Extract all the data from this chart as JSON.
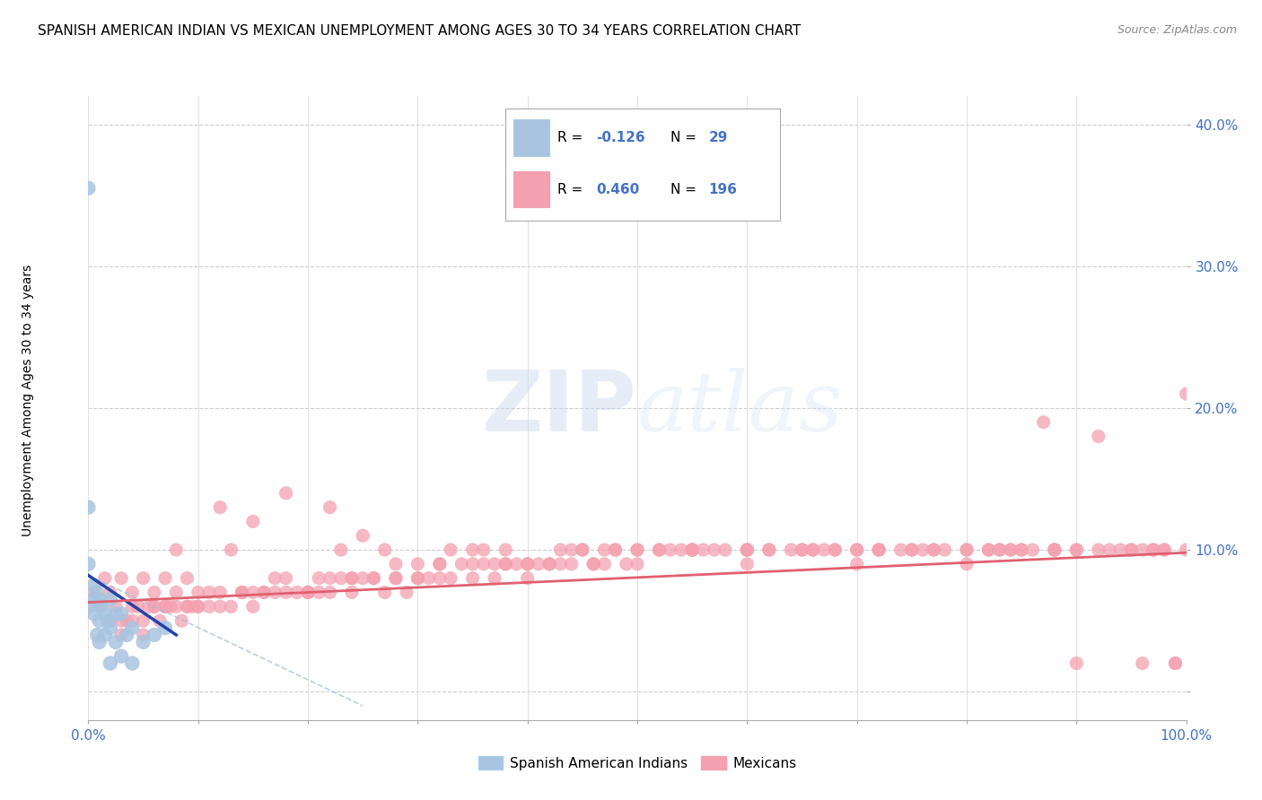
{
  "title": "SPANISH AMERICAN INDIAN VS MEXICAN UNEMPLOYMENT AMONG AGES 30 TO 34 YEARS CORRELATION CHART",
  "source": "Source: ZipAtlas.com",
  "ylabel": "Unemployment Among Ages 30 to 34 years",
  "xlim": [
    0,
    1.0
  ],
  "ylim": [
    -0.02,
    0.42
  ],
  "xtick_vals": [
    0.0,
    0.1,
    0.2,
    0.3,
    0.4,
    0.5,
    0.6,
    0.7,
    0.8,
    0.9,
    1.0
  ],
  "xtick_labels": [
    "0.0%",
    "",
    "",
    "",
    "",
    "",
    "",
    "",
    "",
    "",
    "100.0%"
  ],
  "ytick_vals": [
    0.0,
    0.1,
    0.2,
    0.3,
    0.4
  ],
  "ytick_labels": [
    "",
    "10.0%",
    "20.0%",
    "30.0%",
    "40.0%"
  ],
  "legend_blue_label": "Spanish American Indians",
  "legend_pink_label": "Mexicans",
  "r_blue": "-0.126",
  "n_blue": "29",
  "r_pink": "0.460",
  "n_pink": "196",
  "blue_color": "#a8c4e0",
  "pink_color": "#f4a0b0",
  "blue_line_color": "#2244aa",
  "pink_line_color": "#e06070",
  "tick_color": "#4472c4",
  "watermark_zip": "ZIP",
  "watermark_atlas": "atlas",
  "title_fontsize": 11,
  "axis_label_fontsize": 10,
  "tick_fontsize": 11,
  "blue_x": [
    0.0,
    0.0,
    0.0,
    0.0,
    0.005,
    0.005,
    0.005,
    0.008,
    0.008,
    0.01,
    0.01,
    0.01,
    0.012,
    0.015,
    0.015,
    0.018,
    0.02,
    0.02,
    0.02,
    0.025,
    0.025,
    0.03,
    0.03,
    0.035,
    0.04,
    0.04,
    0.05,
    0.06,
    0.07
  ],
  "blue_y": [
    0.355,
    0.13,
    0.09,
    0.06,
    0.075,
    0.065,
    0.055,
    0.07,
    0.04,
    0.065,
    0.05,
    0.035,
    0.06,
    0.055,
    0.04,
    0.05,
    0.065,
    0.045,
    0.02,
    0.055,
    0.035,
    0.055,
    0.025,
    0.04,
    0.045,
    0.02,
    0.035,
    0.04,
    0.045
  ],
  "pink_x": [
    0.005,
    0.01,
    0.015,
    0.02,
    0.025,
    0.03,
    0.035,
    0.04,
    0.045,
    0.05,
    0.055,
    0.06,
    0.065,
    0.07,
    0.075,
    0.08,
    0.085,
    0.09,
    0.095,
    0.1,
    0.11,
    0.12,
    0.13,
    0.14,
    0.15,
    0.16,
    0.17,
    0.18,
    0.19,
    0.2,
    0.21,
    0.22,
    0.23,
    0.24,
    0.25,
    0.26,
    0.27,
    0.28,
    0.29,
    0.3,
    0.31,
    0.32,
    0.33,
    0.34,
    0.35,
    0.36,
    0.37,
    0.38,
    0.39,
    0.4,
    0.41,
    0.42,
    0.43,
    0.44,
    0.45,
    0.46,
    0.47,
    0.48,
    0.49,
    0.5,
    0.52,
    0.54,
    0.56,
    0.58,
    0.6,
    0.62,
    0.64,
    0.66,
    0.68,
    0.7,
    0.72,
    0.74,
    0.76,
    0.78,
    0.8,
    0.82,
    0.84,
    0.86,
    0.88,
    0.9,
    0.92,
    0.94,
    0.96,
    0.98,
    1.0,
    0.02,
    0.03,
    0.04,
    0.05,
    0.06,
    0.07,
    0.08,
    0.09,
    0.1,
    0.12,
    0.14,
    0.16,
    0.18,
    0.2,
    0.22,
    0.24,
    0.26,
    0.28,
    0.3,
    0.32,
    0.35,
    0.38,
    0.4,
    0.43,
    0.46,
    0.5,
    0.55,
    0.6,
    0.65,
    0.7,
    0.75,
    0.8,
    0.85,
    0.9,
    0.95,
    0.97,
    0.99,
    0.03,
    0.05,
    0.07,
    0.1,
    0.15,
    0.2,
    0.3,
    0.4,
    0.5,
    0.6,
    0.7,
    0.8,
    0.9,
    1.0,
    0.25,
    0.35,
    0.45,
    0.55,
    0.65,
    0.75,
    0.85,
    0.95,
    0.15,
    0.22,
    0.33,
    0.44,
    0.55,
    0.66,
    0.77,
    0.88,
    0.99,
    0.12,
    0.18,
    0.27,
    0.36,
    0.48,
    0.6,
    0.72,
    0.84,
    0.96,
    0.08,
    0.13,
    0.23,
    0.38,
    0.53,
    0.68,
    0.83,
    0.98,
    0.04,
    0.06,
    0.09,
    0.11,
    0.14,
    0.17,
    0.21,
    0.24,
    0.28,
    0.32,
    0.37,
    0.42,
    0.47,
    0.52,
    0.57,
    0.62,
    0.67,
    0.72,
    0.77,
    0.82,
    0.87,
    0.92,
    0.97,
    0.93,
    0.88,
    0.83
  ],
  "pink_y": [
    0.07,
    0.06,
    0.08,
    0.07,
    0.06,
    0.08,
    0.05,
    0.07,
    0.06,
    0.08,
    0.06,
    0.07,
    0.05,
    0.08,
    0.06,
    0.07,
    0.05,
    0.08,
    0.06,
    0.07,
    0.06,
    0.07,
    0.06,
    0.07,
    0.06,
    0.07,
    0.07,
    0.08,
    0.07,
    0.07,
    0.07,
    0.08,
    0.08,
    0.07,
    0.08,
    0.08,
    0.07,
    0.08,
    0.07,
    0.09,
    0.08,
    0.09,
    0.08,
    0.09,
    0.08,
    0.09,
    0.08,
    0.09,
    0.09,
    0.09,
    0.09,
    0.09,
    0.1,
    0.09,
    0.1,
    0.09,
    0.1,
    0.1,
    0.09,
    0.1,
    0.1,
    0.1,
    0.1,
    0.1,
    0.1,
    0.1,
    0.1,
    0.1,
    0.1,
    0.1,
    0.1,
    0.1,
    0.1,
    0.1,
    0.1,
    0.1,
    0.1,
    0.1,
    0.1,
    0.1,
    0.1,
    0.1,
    0.1,
    0.1,
    0.1,
    0.05,
    0.05,
    0.05,
    0.05,
    0.06,
    0.06,
    0.06,
    0.06,
    0.06,
    0.06,
    0.07,
    0.07,
    0.07,
    0.07,
    0.07,
    0.08,
    0.08,
    0.08,
    0.08,
    0.08,
    0.09,
    0.09,
    0.09,
    0.09,
    0.09,
    0.1,
    0.1,
    0.1,
    0.1,
    0.1,
    0.1,
    0.1,
    0.1,
    0.1,
    0.1,
    0.1,
    0.02,
    0.04,
    0.04,
    0.06,
    0.06,
    0.07,
    0.07,
    0.08,
    0.08,
    0.09,
    0.09,
    0.09,
    0.09,
    0.02,
    0.21,
    0.11,
    0.1,
    0.1,
    0.1,
    0.1,
    0.1,
    0.1,
    0.1,
    0.12,
    0.13,
    0.1,
    0.1,
    0.1,
    0.1,
    0.1,
    0.1,
    0.02,
    0.13,
    0.14,
    0.1,
    0.1,
    0.1,
    0.1,
    0.1,
    0.1,
    0.02,
    0.1,
    0.1,
    0.1,
    0.1,
    0.1,
    0.1,
    0.1,
    0.1,
    0.06,
    0.06,
    0.06,
    0.07,
    0.07,
    0.08,
    0.08,
    0.08,
    0.09,
    0.09,
    0.09,
    0.09,
    0.09,
    0.1,
    0.1,
    0.1,
    0.1,
    0.1,
    0.1,
    0.1,
    0.19,
    0.18,
    0.1,
    0.1,
    0.1,
    0.1
  ]
}
